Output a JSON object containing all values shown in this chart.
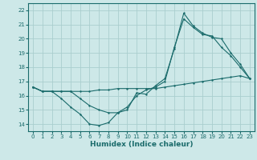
{
  "title": "",
  "xlabel": "Humidex (Indice chaleur)",
  "bg_color": "#cde8e8",
  "grid_color": "#aacece",
  "line_color": "#1a6b6b",
  "xlim": [
    -0.5,
    23.5
  ],
  "ylim": [
    13.5,
    22.5
  ],
  "xticks": [
    0,
    1,
    2,
    3,
    4,
    5,
    6,
    7,
    8,
    9,
    10,
    11,
    12,
    13,
    14,
    15,
    16,
    17,
    18,
    19,
    20,
    21,
    22,
    23
  ],
  "yticks": [
    14,
    15,
    16,
    17,
    18,
    19,
    20,
    21,
    22
  ],
  "series1_x": [
    0,
    1,
    2,
    3,
    4,
    5,
    6,
    7,
    8,
    9,
    10,
    11,
    12,
    13,
    14,
    15,
    16,
    17,
    18,
    19,
    20,
    21,
    22,
    23
  ],
  "series1_y": [
    16.6,
    16.3,
    16.3,
    16.3,
    16.3,
    16.3,
    16.3,
    16.4,
    16.4,
    16.5,
    16.5,
    16.5,
    16.5,
    16.5,
    16.6,
    16.7,
    16.8,
    16.9,
    17.0,
    17.1,
    17.2,
    17.3,
    17.4,
    17.2
  ],
  "series2_x": [
    0,
    1,
    2,
    3,
    4,
    5,
    6,
    7,
    8,
    9,
    10,
    11,
    12,
    13,
    14,
    15,
    16,
    17,
    18,
    19,
    20,
    21,
    22,
    23
  ],
  "series2_y": [
    16.6,
    16.3,
    16.3,
    15.8,
    15.2,
    14.7,
    14.0,
    13.9,
    14.1,
    14.8,
    15.0,
    16.2,
    16.1,
    16.7,
    17.2,
    19.3,
    21.8,
    20.9,
    20.4,
    20.1,
    20.0,
    19.0,
    18.2,
    17.2
  ],
  "series3_x": [
    0,
    1,
    2,
    3,
    4,
    5,
    6,
    7,
    8,
    9,
    10,
    11,
    12,
    13,
    14,
    15,
    16,
    17,
    18,
    19,
    20,
    21,
    22,
    23
  ],
  "series3_y": [
    16.6,
    16.3,
    16.3,
    16.3,
    16.3,
    15.8,
    15.3,
    15.0,
    14.8,
    14.8,
    15.2,
    16.0,
    16.4,
    16.6,
    17.0,
    19.4,
    21.4,
    20.8,
    20.3,
    20.2,
    19.4,
    18.8,
    18.0,
    17.2
  ]
}
